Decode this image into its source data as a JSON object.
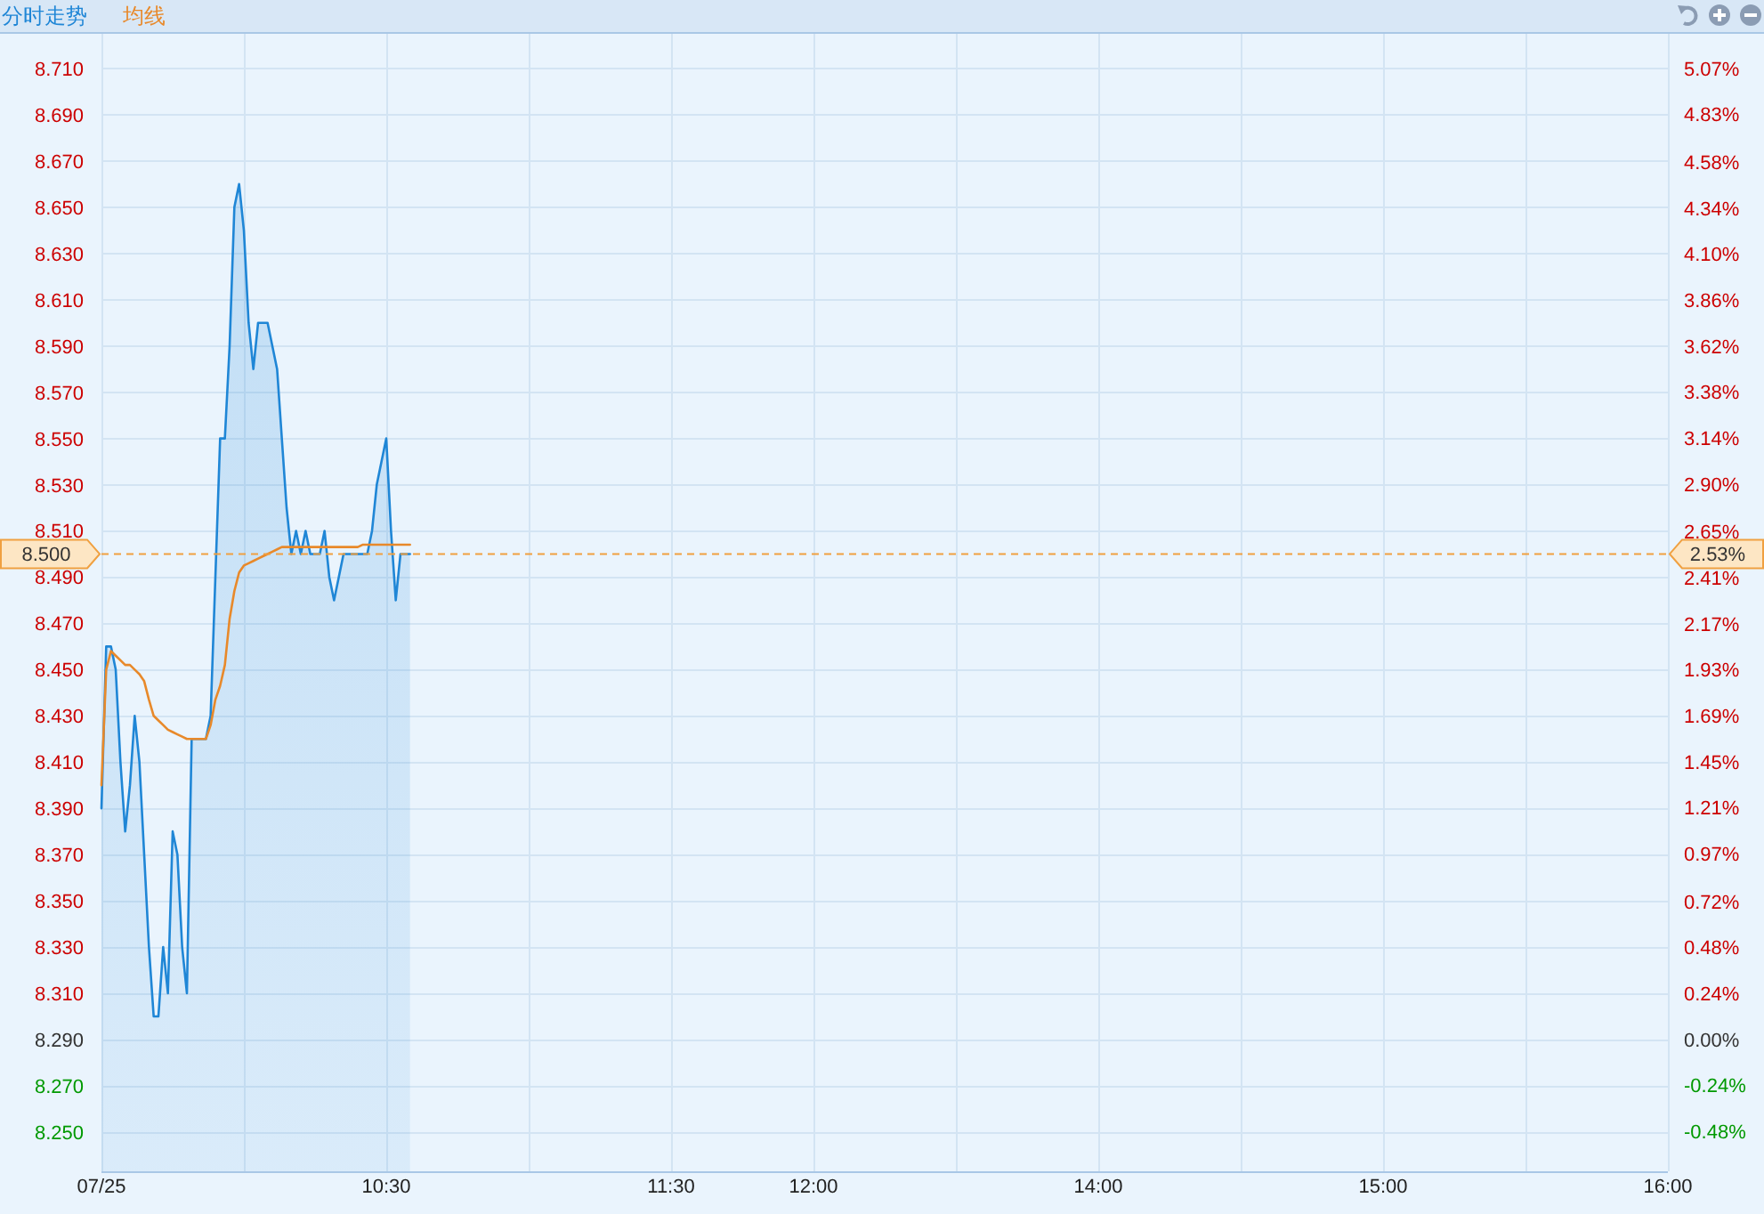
{
  "chart_data": {
    "type": "area",
    "categories": [
      "07/25",
      null,
      null,
      null,
      null,
      null,
      null,
      null,
      null,
      null,
      null,
      null,
      null,
      null,
      null,
      null,
      null,
      null,
      null,
      null,
      null,
      null,
      null,
      null,
      null,
      null,
      null,
      null,
      null,
      null,
      null,
      null,
      null,
      null,
      null,
      null,
      null,
      null,
      null,
      null,
      null,
      null,
      null,
      null,
      null,
      null,
      null,
      null,
      null,
      null,
      null,
      null,
      null,
      null,
      null,
      null,
      null,
      null,
      null,
      null,
      "10:30",
      null,
      null,
      null,
      null,
      null,
      null,
      null,
      null,
      null,
      null,
      null,
      null,
      null,
      null,
      null,
      null,
      null,
      null,
      null,
      null,
      null,
      null,
      null,
      null,
      null,
      null,
      null,
      null,
      null,
      null,
      null,
      null,
      null,
      null,
      null,
      null,
      null,
      null,
      null,
      null,
      null,
      null,
      null,
      null,
      null,
      null,
      null,
      null,
      null,
      null,
      null,
      null,
      null,
      null,
      null,
      null,
      null,
      null,
      null,
      "11:30",
      null,
      null,
      null,
      null,
      null,
      null,
      null,
      null,
      null,
      null,
      null,
      null,
      null,
      null,
      null,
      null,
      null,
      null,
      null,
      null,
      null,
      null,
      null,
      null,
      null,
      null,
      null,
      null,
      null,
      "12:00",
      null,
      null,
      null,
      null,
      null,
      null,
      null,
      null,
      null,
      null,
      null,
      null,
      null,
      null,
      null,
      null,
      null,
      null,
      null,
      null,
      null,
      null,
      null,
      null,
      null,
      null,
      null,
      null,
      null,
      null,
      null,
      null,
      null,
      null,
      null,
      null,
      null,
      null,
      null,
      null,
      null,
      null,
      null,
      null,
      null,
      null,
      null,
      null,
      null,
      null,
      null,
      null,
      null,
      null,
      null,
      null,
      null,
      null,
      null,
      "14:00",
      null,
      null,
      null,
      null,
      null,
      null,
      null,
      null,
      null,
      null,
      null,
      null,
      null,
      null,
      null,
      null,
      null,
      null,
      null,
      null,
      null,
      null,
      null,
      null,
      null,
      null,
      null,
      null,
      null,
      null,
      null,
      null,
      null,
      null,
      null,
      null,
      null,
      null,
      null,
      null,
      null,
      null,
      null,
      null,
      null,
      null,
      null,
      null,
      null,
      null,
      null,
      null,
      null,
      null,
      null,
      null,
      null,
      null,
      null,
      "15:00",
      null,
      null,
      null,
      null,
      null,
      null,
      null,
      null,
      null,
      null,
      null,
      null,
      null,
      null,
      null,
      null,
      null,
      null,
      null,
      null,
      null,
      null,
      null,
      null,
      null,
      null,
      null,
      null,
      null,
      null,
      null,
      null,
      null,
      null,
      null,
      null,
      null,
      null,
      null,
      null,
      null,
      null,
      null,
      null,
      null,
      null,
      null,
      null,
      null,
      null,
      null,
      null,
      null,
      null,
      null,
      null,
      null,
      null,
      null,
      "16:00"
    ],
    "series": [
      {
        "name": "分时走势",
        "type": "area",
        "color": "#1f86d6",
        "values": [
          8.39,
          8.46,
          8.46,
          8.45,
          8.41,
          8.38,
          8.4,
          8.43,
          8.41,
          8.37,
          8.33,
          8.3,
          8.3,
          8.33,
          8.31,
          8.38,
          8.37,
          8.33,
          8.31,
          8.42,
          8.42,
          8.42,
          8.42,
          8.43,
          8.49,
          8.55,
          8.55,
          8.59,
          8.65,
          8.66,
          8.64,
          8.6,
          8.58,
          8.6,
          8.6,
          8.6,
          8.59,
          8.58,
          8.55,
          8.52,
          8.5,
          8.51,
          8.5,
          8.51,
          8.5,
          8.5,
          8.5,
          8.51,
          8.49,
          8.48,
          8.49,
          8.5,
          8.5,
          8.5,
          8.5,
          8.5,
          8.5,
          8.51,
          8.53,
          8.54,
          8.55,
          8.51,
          8.48,
          8.5,
          8.5,
          8.5,
          null,
          null,
          null,
          null,
          null,
          null,
          null,
          null,
          null,
          null,
          null,
          null,
          null,
          null,
          null,
          null,
          null,
          null,
          null,
          null,
          null,
          null,
          null,
          null,
          null,
          null,
          null,
          null,
          null,
          null,
          null,
          null,
          null,
          null,
          null,
          null,
          null,
          null,
          null,
          null,
          null,
          null,
          null,
          null,
          null,
          null,
          null,
          null,
          null,
          null,
          null,
          null,
          null,
          null,
          null,
          null,
          null,
          null,
          null,
          null,
          null,
          null,
          null,
          null,
          null,
          null,
          null,
          null,
          null,
          null,
          null,
          null,
          null,
          null,
          null,
          null,
          null,
          null,
          null,
          null,
          null,
          null,
          null,
          null,
          null,
          null,
          null,
          null,
          null,
          null,
          null,
          null,
          null,
          null,
          null,
          null,
          null,
          null,
          null,
          null,
          null,
          null,
          null,
          null,
          null,
          null,
          null,
          null,
          null,
          null,
          null,
          null,
          null,
          null,
          null,
          null,
          null,
          null,
          null,
          null,
          null,
          null,
          null,
          null,
          null,
          null,
          null,
          null,
          null,
          null,
          null,
          null,
          null,
          null,
          null,
          null,
          null,
          null,
          null,
          null,
          null,
          null,
          null,
          null,
          null,
          null,
          null,
          null,
          null,
          null,
          null,
          null,
          null,
          null,
          null,
          null,
          null,
          null,
          null,
          null,
          null,
          null,
          null,
          null,
          null,
          null,
          null,
          null,
          null,
          null,
          null,
          null,
          null,
          null,
          null,
          null,
          null,
          null,
          null,
          null,
          null,
          null,
          null,
          null,
          null,
          null,
          null,
          null,
          null,
          null,
          null,
          null,
          null,
          null,
          null,
          null,
          null,
          null,
          null,
          null,
          null,
          null,
          null,
          null,
          null,
          null,
          null,
          null,
          null,
          null,
          null,
          null,
          null,
          null,
          null,
          null,
          null,
          null,
          null,
          null,
          null,
          null,
          null,
          null,
          null,
          null,
          null,
          null,
          null,
          null,
          null,
          null,
          null,
          null,
          null,
          null,
          null,
          null,
          null,
          null,
          null,
          null,
          null,
          null,
          null,
          null,
          null,
          null,
          null,
          null,
          null,
          null,
          null,
          null,
          null,
          null,
          null,
          null,
          null,
          null,
          null,
          null,
          null,
          null,
          null
        ]
      },
      {
        "name": "均线",
        "type": "line",
        "color": "#e8892a",
        "values": [
          8.4,
          8.45,
          8.458,
          8.456,
          8.454,
          8.452,
          8.452,
          8.45,
          8.448,
          8.445,
          8.437,
          8.43,
          8.428,
          8.426,
          8.424,
          8.423,
          8.422,
          8.421,
          8.42,
          8.42,
          8.42,
          8.42,
          8.42,
          8.426,
          8.437,
          8.443,
          8.452,
          8.472,
          8.484,
          8.492,
          8.495,
          8.496,
          8.497,
          8.498,
          8.499,
          8.5,
          8.501,
          8.502,
          8.503,
          8.503,
          8.503,
          8.503,
          8.503,
          8.503,
          8.503,
          8.503,
          8.503,
          8.503,
          8.503,
          8.503,
          8.503,
          8.503,
          8.503,
          8.503,
          8.503,
          8.504,
          8.504,
          8.504,
          8.504,
          8.504,
          8.504,
          8.504,
          8.504,
          8.504,
          8.504,
          8.504,
          null,
          null,
          null,
          null,
          null,
          null,
          null,
          null,
          null,
          null,
          null,
          null,
          null,
          null,
          null,
          null,
          null,
          null,
          null,
          null,
          null,
          null,
          null,
          null,
          null,
          null,
          null,
          null,
          null,
          null,
          null,
          null,
          null,
          null,
          null,
          null,
          null,
          null,
          null,
          null,
          null,
          null,
          null,
          null,
          null,
          null,
          null,
          null,
          null,
          null,
          null,
          null,
          null,
          null,
          null,
          null,
          null,
          null,
          null,
          null,
          null,
          null,
          null,
          null,
          null,
          null,
          null,
          null,
          null,
          null,
          null,
          null,
          null,
          null,
          null,
          null,
          null,
          null,
          null,
          null,
          null,
          null,
          null,
          null,
          null,
          null,
          null,
          null,
          null,
          null,
          null,
          null,
          null,
          null,
          null,
          null,
          null,
          null,
          null,
          null,
          null,
          null,
          null,
          null,
          null,
          null,
          null,
          null,
          null,
          null,
          null,
          null,
          null,
          null,
          null,
          null,
          null,
          null,
          null,
          null,
          null,
          null,
          null,
          null,
          null,
          null,
          null,
          null,
          null,
          null,
          null,
          null,
          null,
          null,
          null,
          null,
          null,
          null,
          null,
          null,
          null,
          null,
          null,
          null,
          null,
          null,
          null,
          null,
          null,
          null,
          null,
          null,
          null,
          null,
          null,
          null,
          null,
          null,
          null,
          null,
          null,
          null,
          null,
          null,
          null,
          null,
          null,
          null,
          null,
          null,
          null,
          null,
          null,
          null,
          null,
          null,
          null,
          null,
          null,
          null,
          null,
          null,
          null,
          null,
          null,
          null,
          null,
          null,
          null,
          null,
          null,
          null,
          null,
          null,
          null,
          null,
          null,
          null,
          null,
          null,
          null,
          null,
          null,
          null,
          null,
          null,
          null,
          null,
          null,
          null,
          null,
          null,
          null,
          null,
          null,
          null,
          null,
          null,
          null,
          null,
          null,
          null,
          null,
          null,
          null,
          null,
          null,
          null,
          null,
          null,
          null,
          null,
          null,
          null,
          null,
          null,
          null,
          null,
          null,
          null,
          null,
          null,
          null,
          null,
          null,
          null,
          null,
          null,
          null,
          null,
          null,
          null,
          null,
          null,
          null,
          null,
          null,
          null,
          null,
          null,
          null,
          null,
          null,
          null,
          null
        ]
      }
    ],
    "ylim": [
      8.233,
      8.725
    ],
    "yticks": [
      {
        "value": 8.25,
        "label": "8.250"
      },
      {
        "value": 8.27,
        "label": "8.270"
      },
      {
        "value": 8.29,
        "label": "8.290"
      },
      {
        "value": 8.31,
        "label": "8.310"
      },
      {
        "value": 8.33,
        "label": "8.330"
      },
      {
        "value": 8.35,
        "label": "8.350"
      },
      {
        "value": 8.37,
        "label": "8.370"
      },
      {
        "value": 8.39,
        "label": "8.390"
      },
      {
        "value": 8.41,
        "label": "8.410"
      },
      {
        "value": 8.43,
        "label": "8.430"
      },
      {
        "value": 8.45,
        "label": "8.450"
      },
      {
        "value": 8.47,
        "label": "8.470"
      },
      {
        "value": 8.49,
        "label": "8.490"
      },
      {
        "value": 8.51,
        "label": "8.510"
      },
      {
        "value": 8.53,
        "label": "8.530"
      },
      {
        "value": 8.55,
        "label": "8.550"
      },
      {
        "value": 8.57,
        "label": "8.570"
      },
      {
        "value": 8.59,
        "label": "8.590"
      },
      {
        "value": 8.61,
        "label": "8.610"
      },
      {
        "value": 8.63,
        "label": "8.630"
      },
      {
        "value": 8.65,
        "label": "8.650"
      },
      {
        "value": 8.67,
        "label": "8.670"
      },
      {
        "value": 8.69,
        "label": "8.690"
      },
      {
        "value": 8.71,
        "label": "8.710"
      }
    ],
    "y2lim": [
      -0.69,
      5.25
    ],
    "y2ticks": [
      {
        "value": -0.48,
        "label": "-0.48%"
      },
      {
        "value": -0.24,
        "label": "-0.24%"
      },
      {
        "value": 0,
        "label": "0.00%"
      },
      {
        "value": 0.24,
        "label": "0.24%"
      },
      {
        "value": 0.48,
        "label": "0.48%"
      },
      {
        "value": 0.72,
        "label": "0.72%"
      },
      {
        "value": 0.97,
        "label": "0.97%"
      },
      {
        "value": 1.21,
        "label": "1.21%"
      },
      {
        "value": 1.45,
        "label": "1.45%"
      },
      {
        "value": 1.69,
        "label": "1.69%"
      },
      {
        "value": 1.93,
        "label": "1.93%"
      },
      {
        "value": 2.17,
        "label": "2.17%"
      },
      {
        "value": 2.41,
        "label": "2.41%"
      },
      {
        "value": 2.65,
        "label": "2.65%"
      },
      {
        "value": 2.9,
        "label": "2.90%"
      },
      {
        "value": 3.14,
        "label": "3.14%"
      },
      {
        "value": 3.38,
        "label": "3.38%"
      },
      {
        "value": 3.62,
        "label": "3.62%"
      },
      {
        "value": 3.86,
        "label": "3.86%"
      },
      {
        "value": 4.1,
        "label": "4.10%"
      },
      {
        "value": 4.34,
        "label": "4.34%"
      },
      {
        "value": 4.58,
        "label": "4.58%"
      },
      {
        "value": 4.83,
        "label": "4.83%"
      },
      {
        "value": 5.07,
        "label": "5.07%"
      }
    ],
    "ref_lines": [
      {
        "axis": "y",
        "value": 8.5,
        "label": "8.500",
        "color": "#f0a040",
        "line_style": "dashed"
      }
    ],
    "annotations": [
      "2.53%"
    ],
    "grid": true,
    "legend": "top left"
  }
}
